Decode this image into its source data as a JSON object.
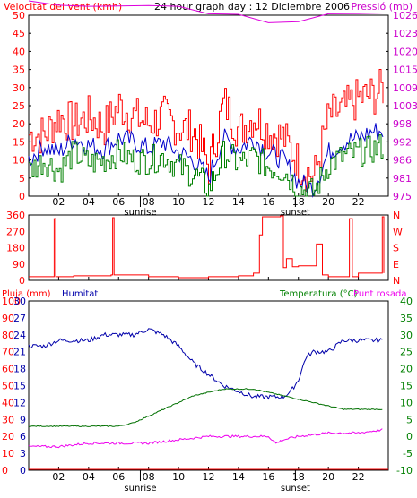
{
  "header": {
    "wind_label": "Velocitat del vent (kmh)",
    "title": "24 hour graph day : 12 Diciembre 2006",
    "pressure_label": "Pressió (mb)"
  },
  "colors": {
    "frame": "#000000",
    "wind_gust": "#ff0000",
    "wind_avg_blue": "#0000cc",
    "wind_green": "#008000",
    "pressure": "#dd00dd",
    "rain": "#ff0000",
    "humidity": "#0000aa",
    "temperature": "#007000",
    "dewpoint": "#ee00ee",
    "left_axis_red": "#ff0000",
    "right_axis_magenta": "#cc00cc",
    "right_axis_green": "#008000"
  },
  "x_axis": {
    "hour_ticks": [
      "02",
      "04",
      "06",
      "08",
      "10",
      "12",
      "14",
      "16",
      "18",
      "20",
      "22"
    ],
    "sunrise_label": "sunrise",
    "sunset_label": "sunset",
    "sunrise_hour": 7.45,
    "sunset_hour": 17.8
  },
  "panel_wind": {
    "left_ticks": [
      "50",
      "45",
      "40",
      "35",
      "30",
      "25",
      "20",
      "15",
      "10",
      "5",
      "0"
    ],
    "right_ticks": [
      "1026",
      "1023",
      "1020",
      "1015",
      "1009",
      "1003",
      "998",
      "992",
      "986",
      "981",
      "975"
    ]
  },
  "panel_direction": {
    "left_ticks": [
      "360",
      "270",
      "180",
      "90",
      "0"
    ],
    "right_ticks": [
      "N",
      "W",
      "S",
      "E",
      "N"
    ]
  },
  "panel_thp": {
    "rain_label": "Pluja (mm)",
    "humidity_label": "Humitat",
    "temp_label": "Temperatura (°C)",
    "dew_label": "Punt rosada",
    "left_ticks_rain": [
      "100",
      "90",
      "80",
      "70",
      "60",
      "50",
      "40",
      "30",
      "20",
      "10",
      "0"
    ],
    "left_ticks_hum": [
      "30",
      "27",
      "24",
      "21",
      "18",
      "15",
      "12",
      "9",
      "6",
      "3",
      "0"
    ],
    "right_ticks": [
      "40",
      "35",
      "30",
      "25",
      "20",
      "15",
      "10",
      "5",
      "0",
      "-5",
      "-10"
    ]
  },
  "chart_data": [
    {
      "type": "line",
      "title": "24 hour graph day : 12 Diciembre 2006",
      "xlabel": "",
      "ylabel": "Velocitat del vent (kmh)",
      "ylim": [
        0,
        50
      ],
      "y2label": "Pressió (mb)",
      "y2_ticks": [
        975,
        981,
        986,
        992,
        998,
        1003,
        1009,
        1015,
        1020,
        1023,
        1026
      ],
      "xlim": [
        0,
        24
      ],
      "grid": false,
      "series": [
        {
          "x": [
            0,
            1,
            2,
            3,
            4,
            5,
            6,
            7,
            8,
            9,
            10,
            11,
            12,
            13,
            14,
            15,
            16,
            17,
            18,
            19,
            20,
            21,
            22,
            23,
            23.7
          ],
          "values": [
            17,
            17,
            22,
            20,
            22,
            19,
            25,
            22,
            20,
            22,
            19,
            18,
            8,
            26,
            18,
            22,
            18,
            16,
            9,
            5,
            22,
            24,
            27,
            28,
            30
          ]
        },
        {
          "x": [
            0,
            1,
            2,
            3,
            4,
            5,
            6,
            7,
            8,
            9,
            10,
            11,
            12,
            13,
            14,
            15,
            16,
            17,
            18,
            19,
            20,
            21,
            22,
            23,
            23.7
          ],
          "values": [
            10,
            14,
            12,
            16,
            14,
            13,
            16,
            15,
            13,
            15,
            12,
            10,
            5,
            16,
            13,
            16,
            12,
            10,
            4,
            2,
            12,
            15,
            16,
            18,
            18
          ]
        },
        {
          "x": [
            0,
            1,
            2,
            3,
            4,
            5,
            6,
            7,
            8,
            9,
            10,
            11,
            12,
            13,
            14,
            15,
            16,
            17,
            18,
            19,
            20,
            21,
            22,
            23,
            23.7
          ],
          "values": [
            7,
            10,
            7,
            12,
            9,
            10,
            12,
            10,
            10,
            11,
            8,
            6,
            2,
            12,
            9,
            11,
            8,
            7,
            2,
            1,
            9,
            11,
            12,
            13,
            14
          ]
        },
        {
          "x": [
            0,
            2,
            4,
            6,
            8,
            10,
            12,
            14,
            16,
            18,
            20,
            22,
            23.7
          ],
          "values": [
            1026,
            1025,
            1025,
            1025,
            1025,
            1025,
            1024,
            1024,
            1023,
            1023,
            1024,
            1024,
            1024
          ]
        }
      ]
    },
    {
      "type": "line",
      "ylabel": "",
      "ylim": [
        0,
        360
      ],
      "y_ticks": [
        0,
        90,
        180,
        270,
        360
      ],
      "xlim": [
        0,
        24
      ],
      "series": [
        {
          "x": [
            0,
            1.6,
            1.7,
            1.8,
            3,
            5.5,
            5.6,
            5.7,
            8,
            10,
            12,
            14,
            15,
            15.4,
            15.6,
            16,
            16.8,
            17,
            17.2,
            17.6,
            18,
            19,
            19.2,
            19.6,
            20,
            21.2,
            21.4,
            21.6,
            22,
            23.5,
            23.6,
            23.7
          ],
          "values": [
            20,
            20,
            340,
            20,
            25,
            30,
            345,
            30,
            20,
            15,
            20,
            25,
            40,
            250,
            350,
            350,
            355,
            70,
            120,
            75,
            80,
            80,
            200,
            30,
            20,
            20,
            340,
            20,
            40,
            40,
            350,
            40
          ]
        }
      ]
    },
    {
      "type": "line",
      "ylabel": "Pluja (mm)",
      "ylim": [
        0,
        100
      ],
      "y2label": "Temperatura (°C)",
      "y2lim": [
        -10,
        40
      ],
      "xlim": [
        0,
        24
      ],
      "series": [
        {
          "name": "Pluja (mm)",
          "x": [
            0,
            24
          ],
          "values": [
            0,
            0
          ]
        },
        {
          "name": "Humitat",
          "x": [
            0,
            1,
            2,
            3,
            4,
            5,
            6,
            7,
            8,
            9,
            10,
            11,
            12,
            13,
            14,
            15,
            16,
            17,
            17.5,
            18,
            18.5,
            19,
            20,
            21,
            22,
            23,
            23.7
          ],
          "values": [
            22,
            22,
            23,
            23,
            23,
            24,
            24,
            24,
            25,
            24,
            22,
            19,
            17,
            15,
            14,
            13,
            13,
            13,
            14,
            16,
            20,
            21,
            21,
            23,
            23,
            23,
            23
          ]
        },
        {
          "name": "Temperatura (°C)",
          "x": [
            0,
            1,
            2,
            3,
            4,
            5,
            6,
            7,
            8,
            9,
            10,
            11,
            12,
            13,
            14,
            15,
            16,
            17,
            18,
            19,
            20,
            21,
            22,
            23,
            23.7
          ],
          "values": [
            3,
            3,
            3,
            3,
            3,
            3,
            3,
            4,
            6,
            8,
            10,
            12,
            13,
            14,
            14,
            14,
            13,
            12,
            11,
            10,
            9,
            8,
            8,
            8,
            8
          ]
        },
        {
          "name": "Punt rosada",
          "x": [
            0,
            2,
            4,
            6,
            8,
            10,
            12,
            14,
            16,
            16.5,
            17,
            18,
            20,
            22,
            23.7
          ],
          "values": [
            -3,
            -3,
            -2,
            -2,
            -2,
            -1,
            0,
            0,
            0,
            -2,
            -1,
            0,
            1,
            1,
            2
          ]
        }
      ]
    }
  ]
}
